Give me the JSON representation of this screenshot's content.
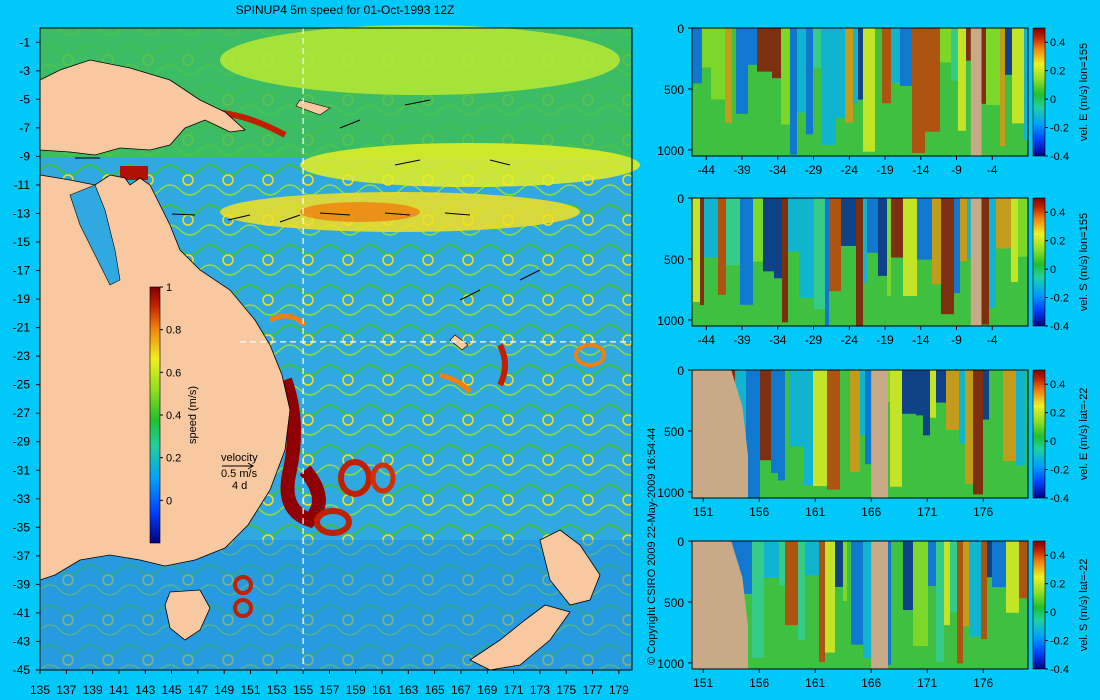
{
  "chart_data": [
    {
      "type": "heatmap",
      "name": "main-map",
      "title": "SPINUP4 5m speed for 01-Oct-1993 12Z",
      "x_ticks": [
        135,
        137,
        139,
        141,
        143,
        145,
        147,
        149,
        151,
        153,
        155,
        157,
        159,
        161,
        163,
        165,
        167,
        169,
        171,
        173,
        175,
        177,
        179
      ],
      "y_ticks": [
        -1,
        -3,
        -5,
        -7,
        -9,
        -11,
        -13,
        -15,
        -17,
        -19,
        -21,
        -23,
        -25,
        -27,
        -29,
        -31,
        -33,
        -35,
        -37,
        -39,
        -41,
        -43,
        -45
      ],
      "xlim": [
        135,
        180
      ],
      "ylim": [
        -45,
        0
      ],
      "section_lines": {
        "lon": 155,
        "lat": -22
      },
      "colorbar": {
        "label": "speed (m/s)",
        "range": [
          -0.2,
          1
        ],
        "ticks": [
          "1",
          "0.8",
          "0.6",
          "0.4",
          "0.2",
          "0"
        ]
      },
      "velocity_legend": {
        "label": "velocity",
        "scale": "0.5 m/s",
        "duration": "4 d"
      }
    },
    {
      "type": "heatmap",
      "name": "section-1",
      "label": "vel. E (m/s) lon=155",
      "x_ticks": [
        "-44",
        "-39",
        "-34",
        "-29",
        "-24",
        "-19",
        "-14",
        "-9",
        "-4"
      ],
      "y_ticks": [
        "0",
        "500",
        "1000"
      ],
      "xlim": [
        -46,
        1
      ],
      "ylim": [
        1050,
        0
      ],
      "colorbar": {
        "ticks": [
          "0.4",
          "0.2",
          "0",
          "-0.2",
          "-0.4"
        ],
        "range": [
          -0.4,
          0.5
        ]
      }
    },
    {
      "type": "heatmap",
      "name": "section-2",
      "label": "vel. S (m/s) lon=155",
      "x_ticks": [
        "-44",
        "-39",
        "-34",
        "-29",
        "-24",
        "-19",
        "-14",
        "-9",
        "-4"
      ],
      "y_ticks": [
        "0",
        "500",
        "1000"
      ],
      "xlim": [
        -46,
        1
      ],
      "ylim": [
        1050,
        0
      ],
      "colorbar": {
        "ticks": [
          "0.4",
          "0.2",
          "0",
          "-0.2",
          "-0.4"
        ],
        "range": [
          -0.4,
          0.5
        ]
      }
    },
    {
      "type": "heatmap",
      "name": "section-3",
      "label": "vel. E (m/s) lat=-22",
      "x_ticks": [
        "151",
        "156",
        "161",
        "166",
        "171",
        "176"
      ],
      "y_ticks": [
        "0",
        "500",
        "1000"
      ],
      "xlim": [
        150,
        180
      ],
      "ylim": [
        1050,
        0
      ],
      "colorbar": {
        "ticks": [
          "0.4",
          "0.2",
          "0",
          "-0.2",
          "-0.4"
        ],
        "range": [
          -0.4,
          0.5
        ]
      }
    },
    {
      "type": "heatmap",
      "name": "section-4",
      "label": "vel. S (m/s) lat=-22",
      "x_ticks": [
        "151",
        "156",
        "161",
        "166",
        "171",
        "176"
      ],
      "y_ticks": [
        "0",
        "500",
        "1000"
      ],
      "xlim": [
        150,
        180
      ],
      "ylim": [
        1050,
        0
      ],
      "colorbar": {
        "ticks": [
          "0.4",
          "0.2",
          "0",
          "-0.2",
          "-0.4"
        ],
        "range": [
          -0.4,
          0.5
        ]
      }
    }
  ],
  "copyright": "© Copyright CSIRO 2009   22-May-2009 16:54:44",
  "colors": {
    "background": "#00c8f8",
    "land": "#f8c8a0",
    "section_land": "#c8aa88",
    "colormap": [
      "#000080",
      "#0040ff",
      "#00a0ff",
      "#20d0a0",
      "#20c030",
      "#90e020",
      "#f0f020",
      "#f08010",
      "#c02000",
      "#800000"
    ]
  }
}
